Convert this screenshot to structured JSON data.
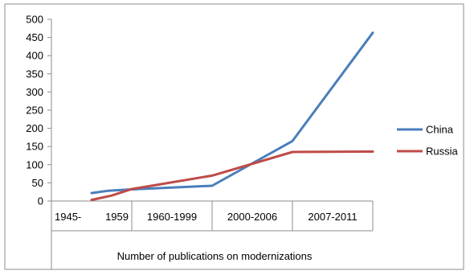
{
  "chart_data": {
    "type": "line",
    "categories": [
      "1945-1959",
      "1960-1999",
      "2000-2006",
      "2007-2011"
    ],
    "category_labels": [
      "1945-",
      "1959",
      "1960-1999",
      "2000-2006",
      "2007-2011"
    ],
    "xlabel": "Number of publications on modernizations",
    "ylabel": "",
    "title": "",
    "ylim": [
      0,
      500
    ],
    "yticks": [
      0,
      50,
      100,
      150,
      200,
      250,
      300,
      350,
      400,
      450,
      500
    ],
    "grid": false,
    "legend_position": "right",
    "series": [
      {
        "name": "China",
        "color": "#4a7ebb",
        "points": [
          {
            "x": 0.0,
            "y": 22
          },
          {
            "x": 0.2,
            "y": 28
          },
          {
            "x": 0.5,
            "y": 32
          },
          {
            "x": 1.5,
            "y": 42
          },
          {
            "x": 2.5,
            "y": 165
          },
          {
            "x": 3.5,
            "y": 463
          }
        ]
      },
      {
        "name": "Russia",
        "color": "#be4b48",
        "points": [
          {
            "x": 0.0,
            "y": 3
          },
          {
            "x": 0.25,
            "y": 15
          },
          {
            "x": 0.5,
            "y": 33
          },
          {
            "x": 1.5,
            "y": 70
          },
          {
            "x": 2.5,
            "y": 135
          },
          {
            "x": 3.5,
            "y": 136
          }
        ]
      }
    ]
  }
}
